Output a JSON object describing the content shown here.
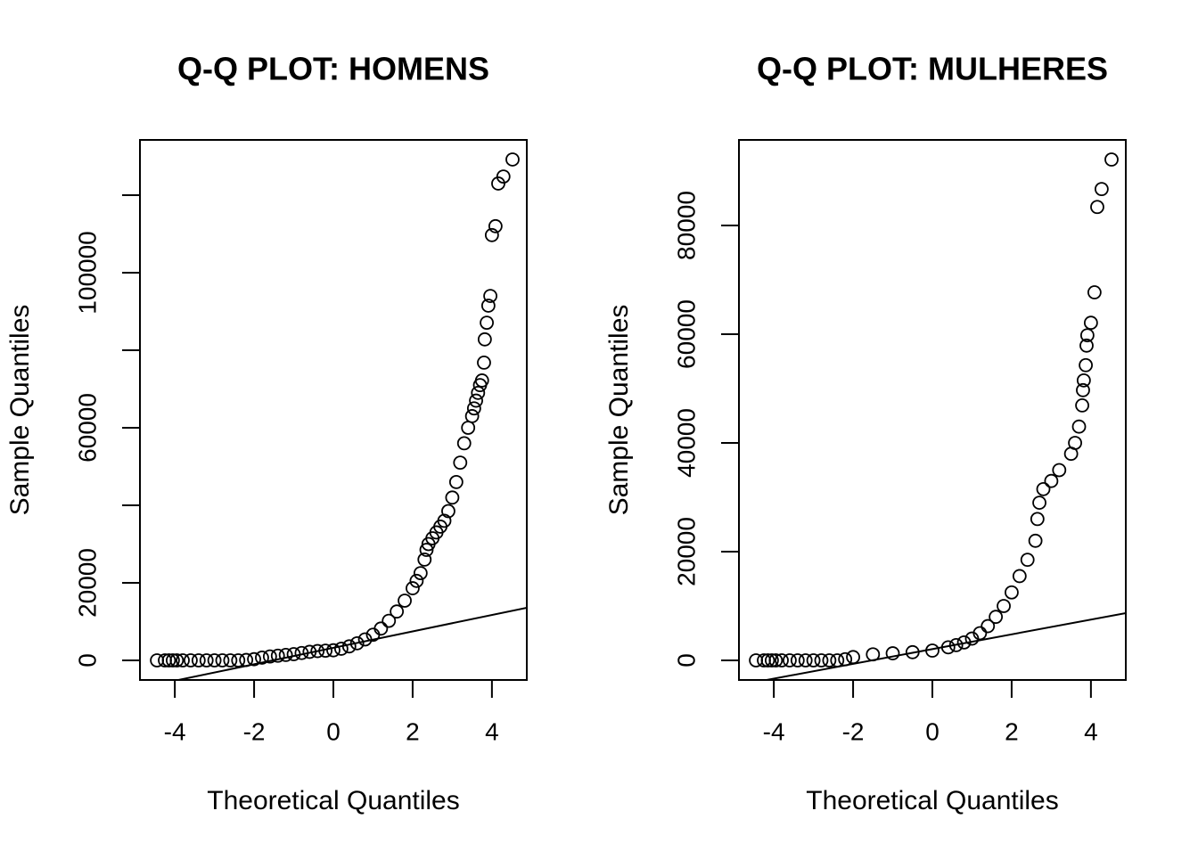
{
  "chart_data": [
    {
      "type": "qq",
      "title": "Q-Q PLOT: HOMENS",
      "x_label": "Theoretical Quantiles",
      "y_label": "Sample Quantiles",
      "xlim": [
        -4.88,
        4.88
      ],
      "ylim": [
        -5060,
        134250
      ],
      "xticks": [
        -4,
        -2,
        0,
        2,
        4
      ],
      "yticks": [
        0,
        20000,
        {
          "value": 40000,
          "label": null
        },
        60000,
        {
          "value": 80000,
          "label": null
        },
        100000,
        {
          "value": 120000,
          "label": null
        }
      ],
      "color": "#000000",
      "x": [
        -4.45,
        -4.25,
        -4.15,
        -4.05,
        -3.95,
        -3.8,
        -3.6,
        -3.4,
        -3.2,
        -3,
        -2.8,
        -2.6,
        -2.4,
        -2.2,
        -2,
        -1.8,
        -1.6,
        -1.4,
        -1.2,
        -1,
        -0.8,
        -0.6,
        -0.4,
        -0.2,
        0,
        0.2,
        0.4,
        0.6,
        0.8,
        1,
        1.2,
        1.4,
        1.6,
        1.8,
        2,
        2.1,
        2.2,
        2.3,
        2.35,
        2.4,
        2.5,
        2.6,
        2.7,
        2.8,
        2.9,
        3,
        3.1,
        3.2,
        3.3,
        3.4,
        3.5,
        3.55,
        3.6,
        3.65,
        3.7,
        3.75,
        3.8,
        3.82,
        3.87,
        3.91,
        3.96,
        4.0,
        4.09,
        4.16,
        4.29,
        4.52
      ],
      "values": [
        0,
        0,
        0,
        0,
        0,
        0,
        0,
        0,
        0,
        0,
        0,
        0,
        0,
        100,
        300,
        700,
        1000,
        1200,
        1400,
        1600,
        1900,
        2200,
        2400,
        2500,
        2600,
        3000,
        3600,
        4400,
        5400,
        6600,
        8200,
        10200,
        12600,
        15400,
        18600,
        20500,
        22500,
        26000,
        28500,
        30000,
        31500,
        33000,
        34500,
        36000,
        38500,
        42000,
        46000,
        51000,
        56000,
        60000,
        63000,
        65000,
        67000,
        69000,
        71000,
        72200,
        76800,
        82800,
        87100,
        91500,
        94000,
        109700,
        112000,
        123000,
        124800,
        129200
      ],
      "qqline": {
        "intercept": 3230,
        "slope": 2120
      }
    },
    {
      "type": "qq",
      "title": "Q-Q PLOT: MULHERES",
      "x_label": "Theoretical Quantiles",
      "y_label": "Sample Quantiles",
      "xlim": [
        -4.88,
        4.88
      ],
      "ylim": [
        -3610,
        95740
      ],
      "xticks": [
        -4,
        -2,
        0,
        2,
        4
      ],
      "yticks": [
        0,
        20000,
        40000,
        60000,
        80000
      ],
      "color": "#000000",
      "x": [
        -4.45,
        -4.25,
        -4.15,
        -4.05,
        -3.95,
        -3.8,
        -3.6,
        -3.4,
        -3.2,
        -3,
        -2.8,
        -2.6,
        -2.4,
        -2.2,
        -2,
        -1.5,
        -1,
        -0.5,
        0,
        0.4,
        0.6,
        0.8,
        1,
        1.2,
        1.4,
        1.6,
        1.8,
        2,
        2.2,
        2.4,
        2.6,
        2.65,
        2.7,
        2.8,
        3,
        3.2,
        3.5,
        3.6,
        3.7,
        3.78,
        3.8,
        3.82,
        3.87,
        3.89,
        3.91,
        4.0,
        4.09,
        4.16,
        4.27,
        4.52
      ],
      "values": [
        0,
        0,
        0,
        0,
        0,
        0,
        0,
        0,
        0,
        0,
        0,
        0,
        0,
        200,
        600,
        1100,
        1300,
        1500,
        1800,
        2400,
        2800,
        3300,
        4000,
        5000,
        6300,
        8000,
        10000,
        12500,
        15500,
        18500,
        22000,
        26000,
        29000,
        31500,
        33000,
        35000,
        38000,
        40000,
        43000,
        46900,
        49700,
        51500,
        54300,
        57900,
        59800,
        62100,
        67700,
        83400,
        86700,
        92130
      ],
      "qqline": {
        "intercept": 2070,
        "slope": 1358
      }
    }
  ]
}
